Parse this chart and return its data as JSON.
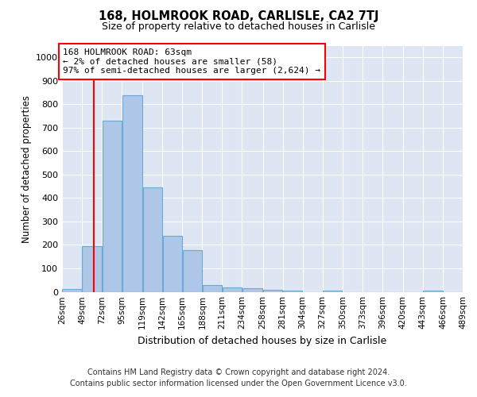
{
  "title": "168, HOLMROOK ROAD, CARLISLE, CA2 7TJ",
  "subtitle": "Size of property relative to detached houses in Carlisle",
  "xlabel": "Distribution of detached houses by size in Carlisle",
  "ylabel": "Number of detached properties",
  "footnote1": "Contains HM Land Registry data © Crown copyright and database right 2024.",
  "footnote2": "Contains public sector information licensed under the Open Government Licence v3.0.",
  "bar_color": "#aec6e8",
  "bar_edge_color": "#6aaad4",
  "background_color": "#dde6f2",
  "red_line_x": 63,
  "annotation_title": "168 HOLMROOK ROAD: 63sqm",
  "annotation_line1": "← 2% of detached houses are smaller (58)",
  "annotation_line2": "97% of semi-detached houses are larger (2,624) →",
  "bin_edges": [
    26,
    49,
    72,
    95,
    119,
    142,
    165,
    188,
    211,
    234,
    258,
    281,
    304,
    327,
    350,
    373,
    396,
    420,
    443,
    466,
    489
  ],
  "bar_heights": [
    12,
    196,
    730,
    840,
    445,
    240,
    178,
    30,
    17,
    14,
    7,
    5,
    0,
    6,
    0,
    0,
    0,
    0,
    5,
    0
  ],
  "ylim": [
    0,
    1050
  ],
  "yticks": [
    0,
    100,
    200,
    300,
    400,
    500,
    600,
    700,
    800,
    900,
    1000
  ]
}
